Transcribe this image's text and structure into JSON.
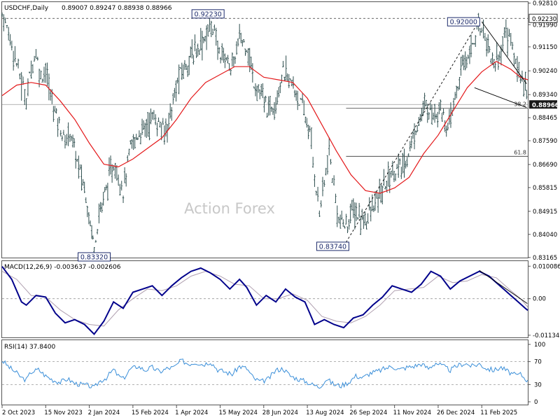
{
  "chart_data": {
    "type": "line",
    "instrument": "USDCHF,Daily",
    "ohlc_header": "0.89007 0.89247 0.88938 0.88966",
    "watermark": "Action Forex",
    "price_axis": {
      "ylim": [
        0.8316,
        0.9282
      ],
      "ticks": [
        "0.92810",
        "0.91990",
        "0.91150",
        "0.90240",
        "0.89340",
        "0.88465",
        "0.87590",
        "0.86690",
        "0.85815",
        "0.84915",
        "0.84040",
        "0.83165"
      ],
      "current_price": "0.88966",
      "marked_price": "0.92230"
    },
    "x_axis": {
      "ticks": [
        "2 Oct 2023",
        "15 Nov 2023",
        "2 Jan 2024",
        "15 Feb 2024",
        "1 Apr 2024",
        "15 May 2024",
        "28 Jun 2024",
        "13 Aug 2024",
        "26 Sep 2024",
        "11 Nov 2024",
        "26 Dec 2024",
        "11 Feb 2025"
      ]
    },
    "price_series": [
      {
        "x": 0,
        "y": 0.924
      },
      {
        "x": 4,
        "y": 0.913
      },
      {
        "x": 8,
        "y": 0.898
      },
      {
        "x": 10,
        "y": 0.892
      },
      {
        "x": 12,
        "y": 0.904
      },
      {
        "x": 14,
        "y": 0.909
      },
      {
        "x": 16,
        "y": 0.9
      },
      {
        "x": 18,
        "y": 0.903
      },
      {
        "x": 20,
        "y": 0.893
      },
      {
        "x": 23,
        "y": 0.884
      },
      {
        "x": 26,
        "y": 0.875
      },
      {
        "x": 28,
        "y": 0.88
      },
      {
        "x": 31,
        "y": 0.868
      },
      {
        "x": 34,
        "y": 0.858
      },
      {
        "x": 37,
        "y": 0.842
      },
      {
        "x": 38,
        "y": 0.836
      },
      {
        "x": 40,
        "y": 0.848
      },
      {
        "x": 43,
        "y": 0.858
      },
      {
        "x": 46,
        "y": 0.867
      },
      {
        "x": 48,
        "y": 0.863
      },
      {
        "x": 50,
        "y": 0.857
      },
      {
        "x": 53,
        "y": 0.873
      },
      {
        "x": 56,
        "y": 0.878
      },
      {
        "x": 59,
        "y": 0.881
      },
      {
        "x": 62,
        "y": 0.885
      },
      {
        "x": 64,
        "y": 0.883
      },
      {
        "x": 67,
        "y": 0.879
      },
      {
        "x": 70,
        "y": 0.888
      },
      {
        "x": 73,
        "y": 0.9
      },
      {
        "x": 76,
        "y": 0.905
      },
      {
        "x": 79,
        "y": 0.909
      },
      {
        "x": 82,
        "y": 0.913
      },
      {
        "x": 85,
        "y": 0.917
      },
      {
        "x": 87,
        "y": 0.92
      },
      {
        "x": 89,
        "y": 0.91
      },
      {
        "x": 92,
        "y": 0.908
      },
      {
        "x": 95,
        "y": 0.903
      },
      {
        "x": 98,
        "y": 0.915
      },
      {
        "x": 101,
        "y": 0.912
      },
      {
        "x": 104,
        "y": 0.898
      },
      {
        "x": 107,
        "y": 0.893
      },
      {
        "x": 110,
        "y": 0.887
      },
      {
        "x": 113,
        "y": 0.892
      },
      {
        "x": 116,
        "y": 0.902
      },
      {
        "x": 119,
        "y": 0.898
      },
      {
        "x": 122,
        "y": 0.893
      },
      {
        "x": 124,
        "y": 0.888
      },
      {
        "x": 127,
        "y": 0.879
      },
      {
        "x": 129,
        "y": 0.863
      },
      {
        "x": 131,
        "y": 0.849
      },
      {
        "x": 133,
        "y": 0.86
      },
      {
        "x": 135,
        "y": 0.871
      },
      {
        "x": 137,
        "y": 0.858
      },
      {
        "x": 139,
        "y": 0.846
      },
      {
        "x": 142,
        "y": 0.843
      },
      {
        "x": 145,
        "y": 0.85
      },
      {
        "x": 148,
        "y": 0.846
      },
      {
        "x": 151,
        "y": 0.847
      },
      {
        "x": 154,
        "y": 0.852
      },
      {
        "x": 157,
        "y": 0.857
      },
      {
        "x": 160,
        "y": 0.863
      },
      {
        "x": 163,
        "y": 0.865
      },
      {
        "x": 166,
        "y": 0.866
      },
      {
        "x": 169,
        "y": 0.875
      },
      {
        "x": 172,
        "y": 0.884
      },
      {
        "x": 175,
        "y": 0.889
      },
      {
        "x": 178,
        "y": 0.886
      },
      {
        "x": 181,
        "y": 0.889
      },
      {
        "x": 184,
        "y": 0.879
      },
      {
        "x": 187,
        "y": 0.892
      },
      {
        "x": 190,
        "y": 0.904
      },
      {
        "x": 193,
        "y": 0.91
      },
      {
        "x": 196,
        "y": 0.917
      },
      {
        "x": 198,
        "y": 0.92
      },
      {
        "x": 200,
        "y": 0.914
      },
      {
        "x": 203,
        "y": 0.905
      },
      {
        "x": 206,
        "y": 0.91
      },
      {
        "x": 208,
        "y": 0.918
      },
      {
        "x": 210,
        "y": 0.914
      },
      {
        "x": 212,
        "y": 0.905
      },
      {
        "x": 214,
        "y": 0.901
      },
      {
        "x": 216,
        "y": 0.898
      },
      {
        "x": 217,
        "y": 0.889
      }
    ],
    "moving_average": [
      {
        "x": 0,
        "y": 0.893
      },
      {
        "x": 6,
        "y": 0.897
      },
      {
        "x": 12,
        "y": 0.898
      },
      {
        "x": 18,
        "y": 0.897
      },
      {
        "x": 24,
        "y": 0.891
      },
      {
        "x": 30,
        "y": 0.884
      },
      {
        "x": 36,
        "y": 0.875
      },
      {
        "x": 42,
        "y": 0.867
      },
      {
        "x": 48,
        "y": 0.866
      },
      {
        "x": 54,
        "y": 0.869
      },
      {
        "x": 60,
        "y": 0.873
      },
      {
        "x": 66,
        "y": 0.877
      },
      {
        "x": 72,
        "y": 0.884
      },
      {
        "x": 78,
        "y": 0.892
      },
      {
        "x": 84,
        "y": 0.898
      },
      {
        "x": 90,
        "y": 0.901
      },
      {
        "x": 96,
        "y": 0.904
      },
      {
        "x": 102,
        "y": 0.904
      },
      {
        "x": 108,
        "y": 0.9
      },
      {
        "x": 114,
        "y": 0.899
      },
      {
        "x": 120,
        "y": 0.898
      },
      {
        "x": 126,
        "y": 0.892
      },
      {
        "x": 132,
        "y": 0.882
      },
      {
        "x": 138,
        "y": 0.872
      },
      {
        "x": 144,
        "y": 0.863
      },
      {
        "x": 150,
        "y": 0.857
      },
      {
        "x": 156,
        "y": 0.856
      },
      {
        "x": 162,
        "y": 0.858
      },
      {
        "x": 168,
        "y": 0.862
      },
      {
        "x": 174,
        "y": 0.871
      },
      {
        "x": 180,
        "y": 0.878
      },
      {
        "x": 186,
        "y": 0.887
      },
      {
        "x": 192,
        "y": 0.896
      },
      {
        "x": 198,
        "y": 0.902
      },
      {
        "x": 204,
        "y": 0.906
      },
      {
        "x": 210,
        "y": 0.903
      },
      {
        "x": 214,
        "y": 0.9
      },
      {
        "x": 217,
        "y": 0.899
      }
    ],
    "annotations": {
      "labels": [
        {
          "text": "0.92230",
          "x": 85,
          "y": 0.924
        },
        {
          "text": "0.83320",
          "x": 38,
          "y": 0.834
        },
        {
          "text": "0.83740",
          "x": 142,
          "y": 0.838
        },
        {
          "text": "0.92000",
          "x": 196,
          "y": 0.921
        }
      ],
      "fib_levels": [
        {
          "label": "38.2",
          "price": 0.8882,
          "x_start": 142
        },
        {
          "label": "61.8",
          "price": 0.87,
          "x_start": 142
        }
      ],
      "dashed_resistance_price": 0.9223
    },
    "macd": {
      "label": "MACD(12,26,9) -0.003637 -0.002606",
      "ylim": [
        -0.0118,
        0.0108
      ],
      "ticks": [
        "0.010086",
        "0.00",
        "-0.011342"
      ],
      "main": [
        {
          "x": 0,
          "y": 0.01
        },
        {
          "x": 4,
          "y": 0.006
        },
        {
          "x": 8,
          "y": -0.001
        },
        {
          "x": 10,
          "y": -0.002
        },
        {
          "x": 14,
          "y": 0.001
        },
        {
          "x": 18,
          "y": 0.0005
        },
        {
          "x": 22,
          "y": -0.0045
        },
        {
          "x": 26,
          "y": -0.0075
        },
        {
          "x": 30,
          "y": -0.0065
        },
        {
          "x": 34,
          "y": -0.008
        },
        {
          "x": 38,
          "y": -0.011
        },
        {
          "x": 42,
          "y": -0.007
        },
        {
          "x": 46,
          "y": -0.001
        },
        {
          "x": 50,
          "y": -0.003
        },
        {
          "x": 54,
          "y": 0.002
        },
        {
          "x": 58,
          "y": 0.003
        },
        {
          "x": 62,
          "y": 0.004
        },
        {
          "x": 66,
          "y": 0.001
        },
        {
          "x": 70,
          "y": 0.004
        },
        {
          "x": 74,
          "y": 0.0065
        },
        {
          "x": 78,
          "y": 0.0085
        },
        {
          "x": 82,
          "y": 0.0095
        },
        {
          "x": 86,
          "y": 0.008
        },
        {
          "x": 90,
          "y": 0.006
        },
        {
          "x": 94,
          "y": 0.003
        },
        {
          "x": 98,
          "y": 0.006
        },
        {
          "x": 101,
          "y": 0.0035
        },
        {
          "x": 105,
          "y": -0.002
        },
        {
          "x": 109,
          "y": 0.001
        },
        {
          "x": 113,
          "y": -0.001
        },
        {
          "x": 117,
          "y": 0.003
        },
        {
          "x": 121,
          "y": 0.0005
        },
        {
          "x": 125,
          "y": -0.001
        },
        {
          "x": 129,
          "y": -0.008
        },
        {
          "x": 133,
          "y": -0.0065
        },
        {
          "x": 137,
          "y": -0.008
        },
        {
          "x": 141,
          "y": -0.009
        },
        {
          "x": 145,
          "y": -0.006
        },
        {
          "x": 149,
          "y": -0.005
        },
        {
          "x": 153,
          "y": -0.002
        },
        {
          "x": 157,
          "y": 0.0005
        },
        {
          "x": 161,
          "y": 0.004
        },
        {
          "x": 165,
          "y": 0.003
        },
        {
          "x": 169,
          "y": 0.002
        },
        {
          "x": 173,
          "y": 0.0045
        },
        {
          "x": 177,
          "y": 0.0085
        },
        {
          "x": 181,
          "y": 0.007
        },
        {
          "x": 185,
          "y": 0.003
        },
        {
          "x": 189,
          "y": 0.0055
        },
        {
          "x": 193,
          "y": 0.007
        },
        {
          "x": 197,
          "y": 0.0085
        },
        {
          "x": 201,
          "y": 0.007
        },
        {
          "x": 204,
          "y": 0.005
        },
        {
          "x": 207,
          "y": 0.003
        },
        {
          "x": 210,
          "y": 0.001
        },
        {
          "x": 213,
          "y": -0.001
        },
        {
          "x": 216,
          "y": -0.003
        },
        {
          "x": 217,
          "y": -0.0036
        }
      ],
      "signal": [
        {
          "x": 0,
          "y": 0.0085
        },
        {
          "x": 6,
          "y": 0.006
        },
        {
          "x": 12,
          "y": 0.001
        },
        {
          "x": 18,
          "y": 0.0005
        },
        {
          "x": 24,
          "y": -0.0035
        },
        {
          "x": 30,
          "y": -0.0065
        },
        {
          "x": 36,
          "y": -0.008
        },
        {
          "x": 42,
          "y": -0.0085
        },
        {
          "x": 48,
          "y": -0.0035
        },
        {
          "x": 54,
          "y": 0.0
        },
        {
          "x": 60,
          "y": 0.003
        },
        {
          "x": 66,
          "y": 0.0025
        },
        {
          "x": 72,
          "y": 0.004
        },
        {
          "x": 78,
          "y": 0.007
        },
        {
          "x": 84,
          "y": 0.0085
        },
        {
          "x": 90,
          "y": 0.007
        },
        {
          "x": 96,
          "y": 0.0045
        },
        {
          "x": 102,
          "y": 0.004
        },
        {
          "x": 108,
          "y": 0.0
        },
        {
          "x": 114,
          "y": 0.0
        },
        {
          "x": 120,
          "y": 0.0015
        },
        {
          "x": 126,
          "y": -0.0005
        },
        {
          "x": 132,
          "y": -0.0055
        },
        {
          "x": 138,
          "y": -0.007
        },
        {
          "x": 144,
          "y": -0.0075
        },
        {
          "x": 150,
          "y": -0.0055
        },
        {
          "x": 156,
          "y": -0.002
        },
        {
          "x": 162,
          "y": 0.0025
        },
        {
          "x": 168,
          "y": 0.003
        },
        {
          "x": 174,
          "y": 0.0035
        },
        {
          "x": 180,
          "y": 0.007
        },
        {
          "x": 186,
          "y": 0.005
        },
        {
          "x": 192,
          "y": 0.0055
        },
        {
          "x": 198,
          "y": 0.0075
        },
        {
          "x": 204,
          "y": 0.0065
        },
        {
          "x": 210,
          "y": 0.0025
        },
        {
          "x": 214,
          "y": 0.0
        },
        {
          "x": 217,
          "y": -0.0026
        }
      ]
    },
    "rsi": {
      "label": "RSI(14) 37.8400",
      "ylim": [
        0,
        100
      ],
      "ticks": [
        "100",
        "70",
        "30",
        "0"
      ],
      "values": [
        {
          "x": 0,
          "y": 72
        },
        {
          "x": 3,
          "y": 60
        },
        {
          "x": 6,
          "y": 50
        },
        {
          "x": 8,
          "y": 42
        },
        {
          "x": 10,
          "y": 38
        },
        {
          "x": 12,
          "y": 52
        },
        {
          "x": 15,
          "y": 56
        },
        {
          "x": 18,
          "y": 45
        },
        {
          "x": 21,
          "y": 38
        },
        {
          "x": 24,
          "y": 34
        },
        {
          "x": 27,
          "y": 40
        },
        {
          "x": 30,
          "y": 32
        },
        {
          "x": 33,
          "y": 30
        },
        {
          "x": 36,
          "y": 28
        },
        {
          "x": 38,
          "y": 24
        },
        {
          "x": 40,
          "y": 35
        },
        {
          "x": 43,
          "y": 42
        },
        {
          "x": 46,
          "y": 56
        },
        {
          "x": 48,
          "y": 45
        },
        {
          "x": 50,
          "y": 40
        },
        {
          "x": 53,
          "y": 57
        },
        {
          "x": 56,
          "y": 62
        },
        {
          "x": 59,
          "y": 55
        },
        {
          "x": 62,
          "y": 60
        },
        {
          "x": 65,
          "y": 52
        },
        {
          "x": 68,
          "y": 58
        },
        {
          "x": 71,
          "y": 60
        },
        {
          "x": 74,
          "y": 72
        },
        {
          "x": 77,
          "y": 66
        },
        {
          "x": 80,
          "y": 69
        },
        {
          "x": 83,
          "y": 65
        },
        {
          "x": 86,
          "y": 70
        },
        {
          "x": 89,
          "y": 56
        },
        {
          "x": 92,
          "y": 52
        },
        {
          "x": 95,
          "y": 48
        },
        {
          "x": 98,
          "y": 62
        },
        {
          "x": 101,
          "y": 58
        },
        {
          "x": 104,
          "y": 40
        },
        {
          "x": 107,
          "y": 35
        },
        {
          "x": 110,
          "y": 40
        },
        {
          "x": 113,
          "y": 55
        },
        {
          "x": 116,
          "y": 58
        },
        {
          "x": 119,
          "y": 45
        },
        {
          "x": 122,
          "y": 40
        },
        {
          "x": 125,
          "y": 36
        },
        {
          "x": 128,
          "y": 30
        },
        {
          "x": 131,
          "y": 26
        },
        {
          "x": 134,
          "y": 40
        },
        {
          "x": 137,
          "y": 30
        },
        {
          "x": 140,
          "y": 28
        },
        {
          "x": 143,
          "y": 34
        },
        {
          "x": 146,
          "y": 45
        },
        {
          "x": 149,
          "y": 42
        },
        {
          "x": 152,
          "y": 50
        },
        {
          "x": 155,
          "y": 53
        },
        {
          "x": 158,
          "y": 58
        },
        {
          "x": 161,
          "y": 62
        },
        {
          "x": 164,
          "y": 56
        },
        {
          "x": 167,
          "y": 60
        },
        {
          "x": 170,
          "y": 62
        },
        {
          "x": 173,
          "y": 66
        },
        {
          "x": 176,
          "y": 58
        },
        {
          "x": 179,
          "y": 68
        },
        {
          "x": 182,
          "y": 62
        },
        {
          "x": 185,
          "y": 55
        },
        {
          "x": 188,
          "y": 63
        },
        {
          "x": 191,
          "y": 67
        },
        {
          "x": 194,
          "y": 62
        },
        {
          "x": 197,
          "y": 66
        },
        {
          "x": 200,
          "y": 58
        },
        {
          "x": 203,
          "y": 55
        },
        {
          "x": 206,
          "y": 60
        },
        {
          "x": 209,
          "y": 52
        },
        {
          "x": 212,
          "y": 46
        },
        {
          "x": 214,
          "y": 48
        },
        {
          "x": 216,
          "y": 40
        },
        {
          "x": 217,
          "y": 37.84
        }
      ]
    },
    "colors": {
      "price_bars": "#2f4f4f",
      "moving_average": "#e41a1c",
      "macd_main": "#00008b",
      "macd_signal": "#b0a0b0",
      "rsi": "#3b8fd9",
      "current_price_box": "#1a1a1a"
    }
  }
}
